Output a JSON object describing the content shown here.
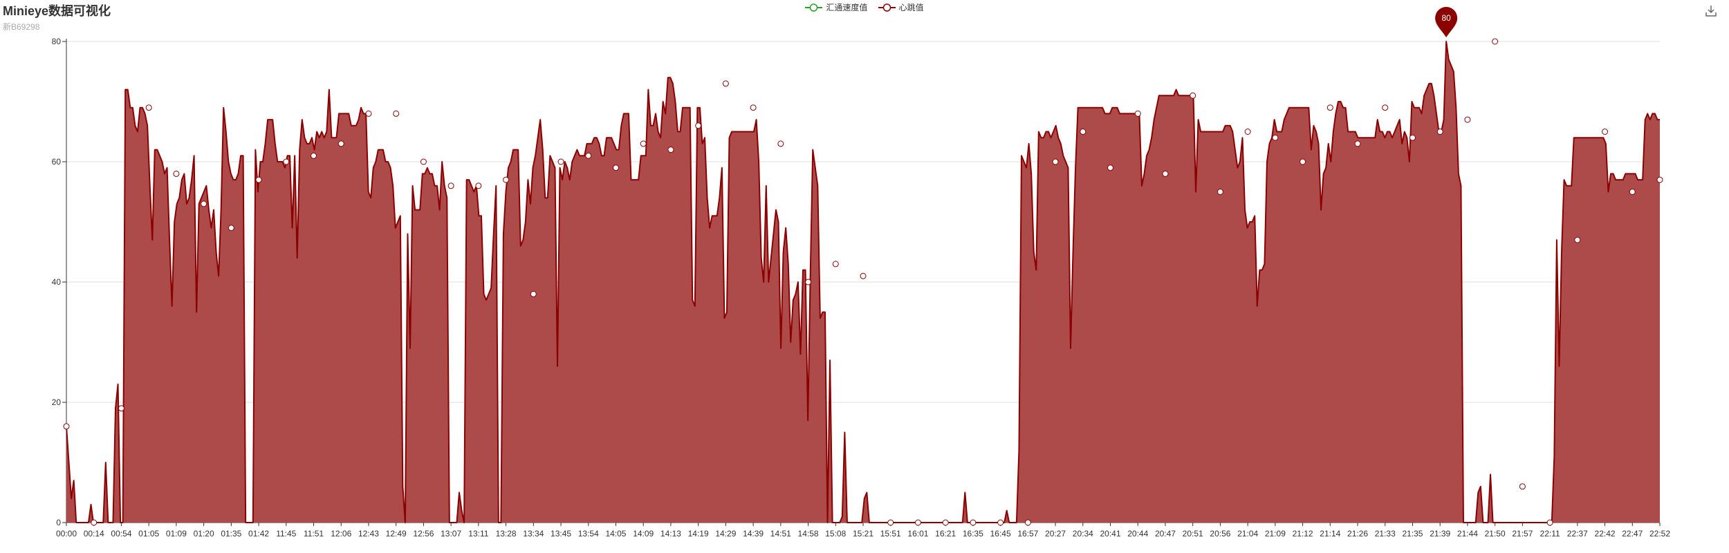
{
  "header": {
    "title": "Minieye数据可视化",
    "subtitle": "新B69298"
  },
  "legend": [
    {
      "name": "汇通速度值",
      "color": "#2ca02c"
    },
    {
      "name": "心跳值",
      "color": "#8b0000"
    }
  ],
  "toolbar": {
    "icon": "download-icon"
  },
  "chart_data": {
    "type": "area",
    "ylim": [
      0,
      80
    ],
    "yticks": [
      0,
      20,
      40,
      60,
      80
    ],
    "grid": true,
    "legend_position": "top-center",
    "xticks": [
      "00:00",
      "00:14",
      "00:54",
      "01:05",
      "01:09",
      "01:20",
      "01:35",
      "01:42",
      "11:45",
      "11:51",
      "12:06",
      "12:43",
      "12:49",
      "12:56",
      "13:07",
      "13:11",
      "13:28",
      "13:34",
      "13:45",
      "13:54",
      "14:05",
      "14:09",
      "14:13",
      "14:19",
      "14:29",
      "14:39",
      "14:51",
      "14:58",
      "15:08",
      "15:21",
      "15:51",
      "16:01",
      "16:21",
      "16:35",
      "16:45",
      "16:57",
      "20:27",
      "20:34",
      "20:41",
      "20:44",
      "20:47",
      "20:51",
      "20:56",
      "21:04",
      "21:09",
      "21:12",
      "21:14",
      "21:26",
      "21:33",
      "21:35",
      "21:39",
      "21:44",
      "21:50",
      "21:57",
      "22:11",
      "22:37",
      "22:42",
      "22:47",
      "22:52"
    ],
    "series": [
      {
        "name": "汇通速度值",
        "color": "#2ca02c",
        "values": []
      },
      {
        "name": "心跳值",
        "color": "#8b0000",
        "fill": "#ad4b4b",
        "values": [
          16,
          10,
          4,
          7,
          0,
          0,
          0,
          0,
          0,
          0,
          3,
          0,
          0,
          0,
          0,
          0,
          10,
          0,
          0,
          0,
          19,
          23,
          0,
          0,
          72,
          72,
          69,
          69,
          66,
          65,
          69,
          69,
          68,
          66,
          56,
          47,
          62,
          62,
          61,
          60,
          58,
          59,
          47,
          36,
          50,
          53,
          54,
          57,
          58,
          53,
          54,
          57,
          61,
          35,
          53,
          54,
          55,
          56,
          52,
          49,
          52,
          45,
          41,
          52,
          69,
          65,
          60,
          58,
          57,
          57,
          58,
          61,
          61,
          0,
          0,
          0,
          0,
          62,
          55,
          60,
          60,
          63,
          67,
          67,
          67,
          63,
          60,
          60,
          60,
          59,
          61,
          61,
          49,
          61,
          44,
          62,
          67,
          64,
          63,
          63,
          64,
          62,
          65,
          64,
          65,
          64,
          65,
          72,
          64,
          64,
          64,
          68,
          68,
          68,
          68,
          68,
          66,
          66,
          66,
          67,
          69,
          68,
          68,
          55,
          54,
          59,
          60,
          62,
          62,
          62,
          60,
          60,
          59,
          56,
          49,
          50,
          51,
          6,
          0,
          48,
          29,
          56,
          52,
          52,
          52,
          58,
          58,
          59,
          58,
          58,
          56,
          56,
          52,
          60,
          56,
          54,
          0,
          0,
          0,
          0,
          5,
          2,
          0,
          57,
          57,
          56,
          55,
          56,
          51,
          51,
          38,
          37,
          38,
          39,
          48,
          56,
          0,
          0,
          48,
          55,
          59,
          60,
          62,
          62,
          62,
          46,
          47,
          50,
          57,
          53,
          59,
          61,
          64,
          67,
          62,
          54,
          54,
          61,
          60,
          59,
          26,
          59,
          57,
          60,
          59,
          57,
          60,
          61,
          62,
          61,
          61,
          61,
          63,
          63,
          63,
          64,
          64,
          63,
          61,
          61,
          64,
          64,
          64,
          63,
          62,
          62,
          66,
          68,
          68,
          68,
          57,
          57,
          57,
          57,
          61,
          61,
          61,
          72,
          66,
          66,
          68,
          65,
          64,
          70,
          68,
          74,
          74,
          73,
          70,
          65,
          65,
          69,
          69,
          69,
          69,
          37,
          36,
          69,
          69,
          63,
          64,
          54,
          49,
          51,
          51,
          51,
          54,
          59,
          34,
          35,
          64,
          65,
          65,
          65,
          65,
          65,
          65,
          65,
          65,
          65,
          65,
          67,
          60,
          44,
          40,
          56,
          40,
          44,
          48,
          52,
          50,
          29,
          45,
          49,
          43,
          30,
          37,
          38,
          40,
          28,
          42,
          42,
          17,
          41,
          62,
          59,
          56,
          34,
          35,
          35,
          0,
          27,
          0,
          0,
          0,
          0,
          1,
          15,
          0,
          0,
          0,
          0,
          0,
          0,
          0,
          4,
          5,
          0,
          0,
          0,
          0,
          0,
          0,
          0,
          0,
          0,
          0,
          0,
          0,
          0,
          0,
          0,
          0,
          0,
          0,
          0,
          0,
          0,
          0,
          0,
          0,
          0,
          0,
          0,
          0,
          0,
          0,
          0,
          0,
          0,
          0,
          0,
          0,
          0,
          0,
          0,
          5,
          0,
          0,
          0,
          0,
          0,
          0,
          0,
          0,
          0,
          0,
          0,
          0,
          0,
          0,
          0,
          0,
          2,
          0,
          0,
          0,
          0,
          12,
          61,
          60,
          59,
          63,
          58,
          45,
          42,
          65,
          64,
          64,
          65,
          65,
          64,
          65,
          66,
          64,
          63,
          61,
          60,
          59,
          29,
          45,
          59,
          69,
          69,
          69,
          69,
          69,
          69,
          69,
          69,
          69,
          69,
          69,
          68,
          68,
          68,
          69,
          69,
          69,
          68,
          68,
          68,
          68,
          68,
          68,
          68,
          68,
          68,
          56,
          58,
          61,
          62,
          64,
          67,
          69,
          71,
          71,
          71,
          71,
          71,
          71,
          71,
          72,
          71,
          71,
          71,
          71,
          71,
          71,
          71,
          55,
          67,
          65,
          65,
          65,
          65,
          65,
          65,
          65,
          65,
          65,
          65,
          66,
          66,
          66,
          65,
          62,
          59,
          60,
          64,
          52,
          49,
          50,
          50,
          51,
          36,
          42,
          42,
          43,
          60,
          63,
          64,
          67,
          65,
          65,
          65,
          67,
          68,
          69,
          69,
          69,
          69,
          69,
          69,
          69,
          69,
          69,
          62,
          66,
          65,
          63,
          52,
          58,
          59,
          63,
          60,
          65,
          68,
          70,
          70,
          69,
          69,
          65,
          65,
          65,
          65,
          64,
          64,
          64,
          64,
          64,
          64,
          64,
          64,
          67,
          65,
          65,
          64,
          65,
          65,
          64,
          65,
          66,
          67,
          63,
          65,
          64,
          60,
          70,
          69,
          69,
          69,
          68,
          71,
          72,
          73,
          73,
          71,
          68,
          65,
          65,
          67,
          80,
          77,
          76,
          75,
          69,
          58,
          56,
          0,
          0,
          0,
          0,
          0,
          0,
          5,
          6,
          0,
          0,
          0,
          8,
          0,
          0,
          0,
          0,
          0,
          0,
          0,
          0,
          0,
          0,
          0,
          0,
          0,
          0,
          0,
          0,
          0,
          0,
          0,
          0,
          0,
          0,
          0,
          0,
          0,
          11,
          47,
          26,
          45,
          57,
          56,
          56,
          56,
          64,
          64,
          64,
          64,
          64,
          64,
          64,
          64,
          64,
          64,
          64,
          64,
          64,
          63,
          55,
          58,
          58,
          57,
          57,
          57,
          57,
          58,
          58,
          58,
          58,
          58,
          57,
          57,
          57,
          67,
          68,
          67,
          68,
          68,
          67,
          67
        ]
      }
    ],
    "marked_points": [
      16,
      0,
      19,
      69,
      58,
      53,
      49,
      57,
      60,
      61,
      63,
      68,
      68,
      60,
      56,
      56,
      57,
      38,
      60,
      61,
      59,
      63,
      62,
      66,
      73,
      69,
      63,
      40,
      43,
      41,
      0,
      0,
      0,
      0,
      0,
      0,
      60,
      65,
      59,
      68,
      58,
      71,
      55,
      65,
      64,
      60,
      69,
      63,
      69,
      64,
      65,
      67,
      80,
      6,
      0,
      47,
      65,
      55,
      57
    ],
    "max_marker": {
      "label": "80",
      "value": 80
    }
  }
}
